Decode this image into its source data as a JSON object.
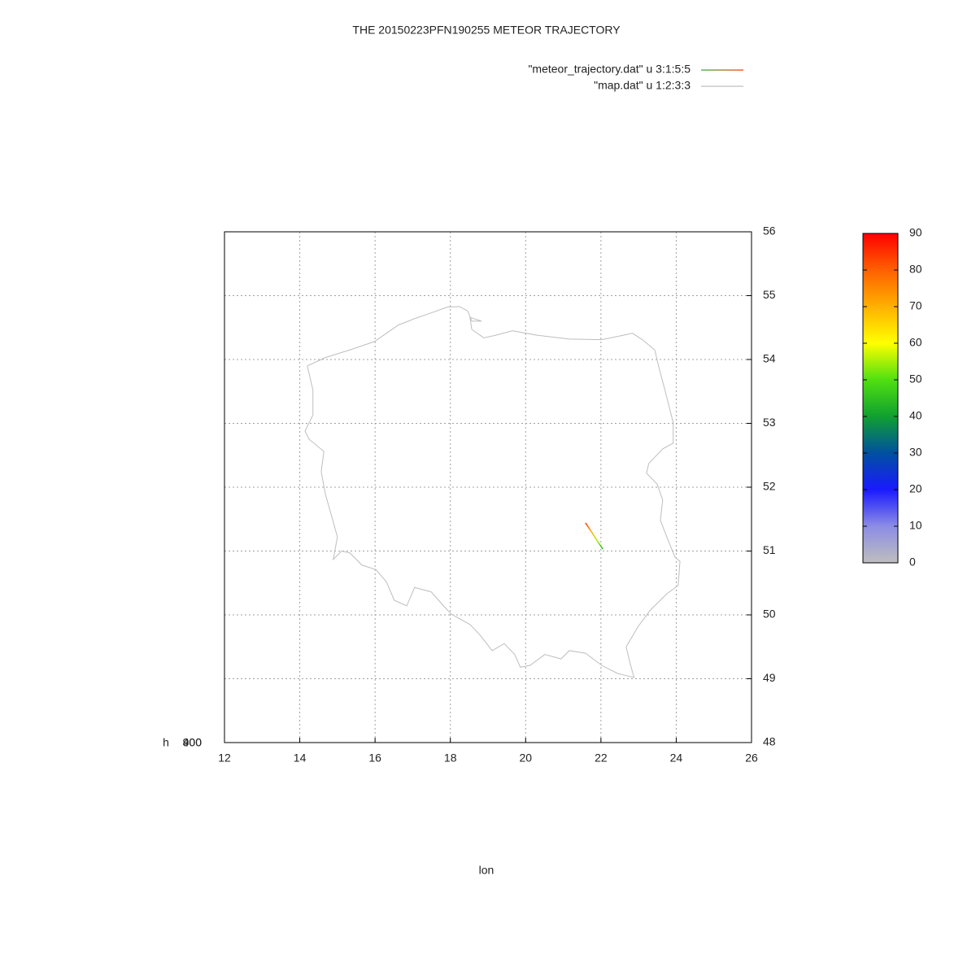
{
  "chart_data": {
    "type": "line",
    "title": "THE 20150223PFN190255 METEOR TRAJECTORY",
    "xlabel": "lon",
    "zlabel": "h",
    "xlim": [
      12,
      26
    ],
    "ylim": [
      48,
      56
    ],
    "xticks": [
      12,
      14,
      16,
      18,
      20,
      22,
      24,
      26
    ],
    "yticks": [
      48,
      49,
      50,
      51,
      52,
      53,
      54,
      55,
      56
    ],
    "zticks": [
      400,
      900
    ],
    "grid": true,
    "cblim": [
      0,
      90
    ],
    "cbticks": [
      0,
      10,
      20,
      30,
      40,
      50,
      60,
      70,
      80,
      90
    ],
    "palette": [
      "#bebebe",
      "#8c8ce6",
      "#1a1aff",
      "#0050a0",
      "#10a030",
      "#50e010",
      "#ffff00",
      "#ffb000",
      "#ff6000",
      "#ff0000"
    ],
    "series": [
      {
        "name": "\"meteor_trajectory.dat\" u 3:1:5:5",
        "x": [
          21.59,
          21.75,
          21.9,
          22.05
        ],
        "values": [
          51.44,
          51.3,
          51.16,
          51.03
        ],
        "color_values": [
          85,
          70,
          55,
          42
        ]
      },
      {
        "name": "\"map.dat\" u 1:2:3:3",
        "color": "#bebebe",
        "x": [
          14.2,
          14.68,
          15.33,
          15.98,
          16.3,
          16.62,
          17.05,
          17.49,
          17.92,
          18.24,
          18.46,
          18.57,
          18.83,
          18.52,
          18.57,
          18.89,
          19.21,
          19.65,
          20.3,
          21.16,
          22.02,
          22.84,
          23.1,
          23.43,
          23.53,
          23.7,
          23.92,
          23.92,
          23.64,
          23.27,
          23.21,
          23.49,
          23.64,
          23.58,
          23.75,
          23.97,
          24.1,
          24.05,
          23.75,
          23.32,
          22.99,
          22.67,
          22.77,
          22.88,
          22.45,
          22.02,
          21.59,
          21.16,
          20.94,
          20.51,
          20.12,
          19.86,
          19.71,
          19.43,
          19.11,
          18.78,
          18.52,
          18.03,
          17.82,
          17.49,
          17.05,
          16.84,
          16.51,
          16.3,
          16.02,
          15.65,
          15.33,
          15.11,
          14.89,
          15.0,
          14.85,
          14.68,
          14.57,
          14.64,
          14.25,
          14.14,
          14.35,
          14.35,
          14.2
        ],
        "values": [
          53.9,
          54.03,
          54.15,
          54.28,
          54.41,
          54.54,
          54.64,
          54.73,
          54.82,
          54.83,
          54.76,
          54.6,
          54.6,
          54.66,
          54.47,
          54.34,
          54.38,
          54.45,
          54.38,
          54.32,
          54.31,
          54.41,
          54.31,
          54.15,
          53.9,
          53.52,
          53.01,
          52.69,
          52.6,
          52.37,
          52.22,
          52.05,
          51.8,
          51.48,
          51.22,
          50.9,
          50.84,
          50.46,
          50.33,
          50.08,
          49.82,
          49.5,
          49.25,
          49.02,
          49.08,
          49.21,
          49.4,
          49.44,
          49.31,
          49.38,
          49.21,
          49.18,
          49.38,
          49.55,
          49.44,
          49.69,
          49.85,
          50.01,
          50.14,
          50.36,
          50.43,
          50.14,
          50.23,
          50.52,
          50.71,
          50.78,
          50.97,
          51.0,
          50.87,
          51.22,
          51.54,
          51.89,
          52.24,
          52.56,
          52.75,
          52.88,
          53.13,
          53.52,
          53.9
        ]
      }
    ]
  }
}
